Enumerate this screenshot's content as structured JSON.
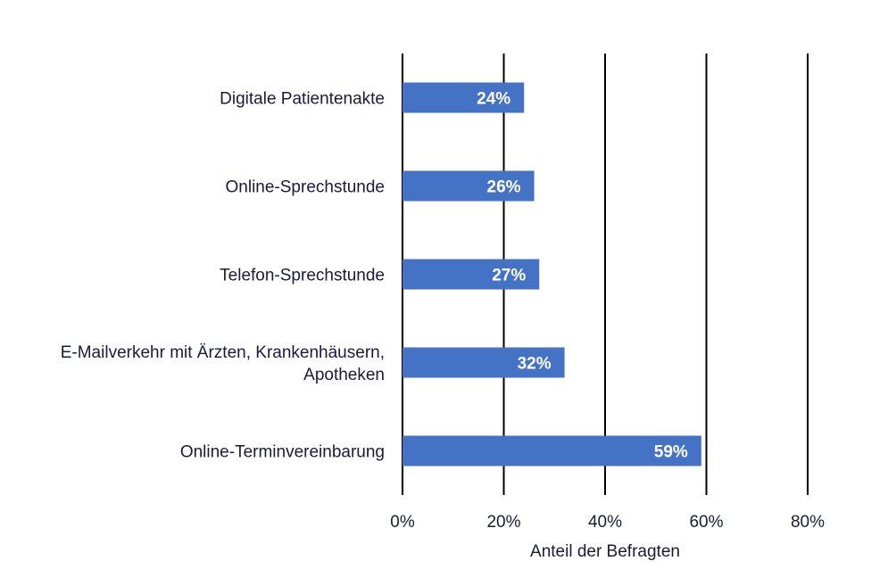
{
  "chart_data": {
    "type": "bar",
    "orientation": "horizontal",
    "categories": [
      [
        "Digitale Patientenakte"
      ],
      [
        "Online-Sprechstunde"
      ],
      [
        "Telefon-Sprechstunde"
      ],
      [
        "E-Mailverkehr mit Ärzten, Krankenhäusern,",
        "Apotheken"
      ],
      [
        "Online-Terminvereinbarung"
      ]
    ],
    "values": [
      24,
      26,
      27,
      32,
      59
    ],
    "data_labels": [
      "24%",
      "26%",
      "27%",
      "32%",
      "59%"
    ],
    "xlim": [
      0,
      80
    ],
    "xticks": [
      0,
      20,
      40,
      60,
      80
    ],
    "xtick_labels": [
      "0%",
      "20%",
      "40%",
      "60%",
      "80%"
    ],
    "xlabel": "Anteil der Befragten",
    "ylabel": "",
    "title": "",
    "grid": "vertical",
    "legend": "none",
    "bar_color": "#4472C4",
    "gridline_color": "#000000",
    "text_color": "#1a1a3a",
    "data_label_color": "#ffffff"
  }
}
